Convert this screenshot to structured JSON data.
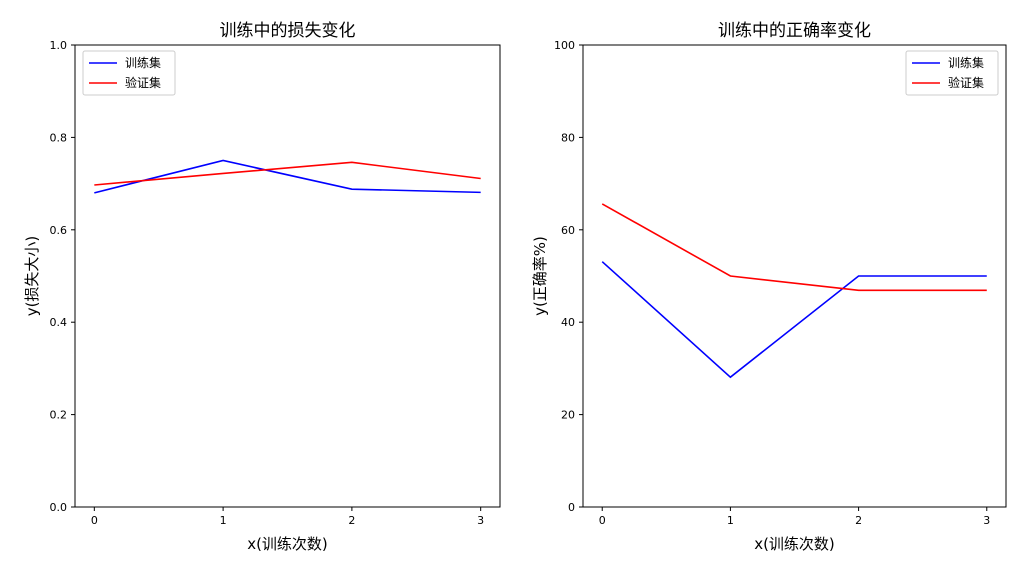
{
  "chart_data": [
    {
      "type": "line",
      "title": "训练中的损失变化",
      "xlabel": "x(训练次数)",
      "ylabel": "y(损失大小)",
      "x": [
        0,
        1,
        2,
        3
      ],
      "xticks": [
        "0",
        "1",
        "2",
        "3"
      ],
      "ylim": [
        0,
        1.0
      ],
      "yticks": [
        "0.0",
        "0.2",
        "0.4",
        "0.6",
        "0.8",
        "1.0"
      ],
      "legend": "top-left",
      "series": [
        {
          "name": "训练集",
          "color": "#0000ff",
          "values": [
            0.68,
            0.75,
            0.688,
            0.681
          ]
        },
        {
          "name": "验证集",
          "color": "#ff0000",
          "values": [
            0.697,
            0.722,
            0.746,
            0.711
          ]
        }
      ]
    },
    {
      "type": "line",
      "title": "训练中的正确率变化",
      "xlabel": "x(训练次数)",
      "ylabel": "y(正确率%)",
      "x": [
        0,
        1,
        2,
        3
      ],
      "xticks": [
        "0",
        "1",
        "2",
        "3"
      ],
      "ylim": [
        0,
        100
      ],
      "yticks": [
        "0",
        "20",
        "40",
        "60",
        "80",
        "100"
      ],
      "legend": "top-right",
      "series": [
        {
          "name": "训练集",
          "color": "#0000ff",
          "values": [
            53.1,
            28.1,
            50.0,
            50.0
          ]
        },
        {
          "name": "验证集",
          "color": "#ff0000",
          "values": [
            65.6,
            50.0,
            46.9,
            46.9
          ]
        }
      ]
    }
  ]
}
